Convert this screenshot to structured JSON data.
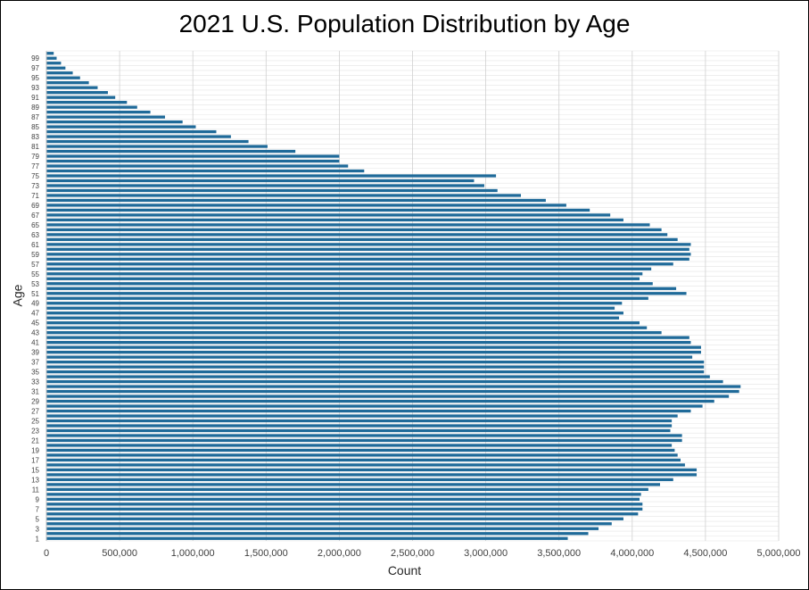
{
  "chart_data": {
    "type": "bar",
    "orientation": "horizontal",
    "title": "2021 U.S. Population Distribution by Age",
    "xlabel": "Count",
    "ylabel": "Age",
    "xlim": [
      0,
      5000000
    ],
    "xticks": [
      "0",
      "500,000",
      "1,000,000",
      "1,500,000",
      "2,000,000",
      "2,500,000",
      "3,000,000",
      "3,500,000",
      "4,000,000",
      "4,500,000",
      "5,000,000"
    ],
    "ytick_labels": [
      "1",
      "3",
      "5",
      "7",
      "9",
      "11",
      "13",
      "15",
      "17",
      "19",
      "21",
      "23",
      "25",
      "27",
      "29",
      "31",
      "33",
      "35",
      "37",
      "39",
      "41",
      "43",
      "45",
      "47",
      "49",
      "51",
      "53",
      "55",
      "57",
      "59",
      "61",
      "63",
      "65",
      "67",
      "69",
      "71",
      "73",
      "75",
      "77",
      "79",
      "81",
      "83",
      "85",
      "87",
      "89",
      "91",
      "93",
      "95",
      "97",
      "99"
    ],
    "grid": "vertical",
    "bar_color": "#1F6A99",
    "categories": [
      1,
      2,
      3,
      4,
      5,
      6,
      7,
      8,
      9,
      10,
      11,
      12,
      13,
      14,
      15,
      16,
      17,
      18,
      19,
      20,
      21,
      22,
      23,
      24,
      25,
      26,
      27,
      28,
      29,
      30,
      31,
      32,
      33,
      34,
      35,
      36,
      37,
      38,
      39,
      40,
      41,
      42,
      43,
      44,
      45,
      46,
      47,
      48,
      49,
      50,
      51,
      52,
      53,
      54,
      55,
      56,
      57,
      58,
      59,
      60,
      61,
      62,
      63,
      64,
      65,
      66,
      67,
      68,
      69,
      70,
      71,
      72,
      73,
      74,
      75,
      76,
      77,
      78,
      79,
      80,
      81,
      82,
      83,
      84,
      85,
      86,
      87,
      88,
      89,
      90,
      91,
      92,
      93,
      94,
      95,
      96,
      97,
      98,
      99,
      100
    ],
    "values": [
      3560000,
      3700000,
      3770000,
      3860000,
      3940000,
      4040000,
      4070000,
      4070000,
      4050000,
      4060000,
      4110000,
      4190000,
      4280000,
      4440000,
      4440000,
      4360000,
      4330000,
      4310000,
      4290000,
      4270000,
      4340000,
      4340000,
      4260000,
      4270000,
      4270000,
      4310000,
      4400000,
      4480000,
      4560000,
      4660000,
      4730000,
      4740000,
      4620000,
      4530000,
      4490000,
      4490000,
      4490000,
      4410000,
      4470000,
      4470000,
      4400000,
      4390000,
      4200000,
      4100000,
      4050000,
      3910000,
      3940000,
      3880000,
      3930000,
      4110000,
      4370000,
      4300000,
      4140000,
      4050000,
      4070000,
      4130000,
      4280000,
      4390000,
      4400000,
      4390000,
      4400000,
      4310000,
      4240000,
      4200000,
      4120000,
      3940000,
      3850000,
      3710000,
      3550000,
      3410000,
      3240000,
      3080000,
      2990000,
      2920000,
      3070000,
      2170000,
      2060000,
      2000000,
      2000000,
      1700000,
      1510000,
      1380000,
      1260000,
      1160000,
      1020000,
      930000,
      810000,
      710000,
      620000,
      550000,
      470000,
      420000,
      350000,
      290000,
      230000,
      180000,
      130000,
      100000,
      70000,
      50000
    ]
  }
}
